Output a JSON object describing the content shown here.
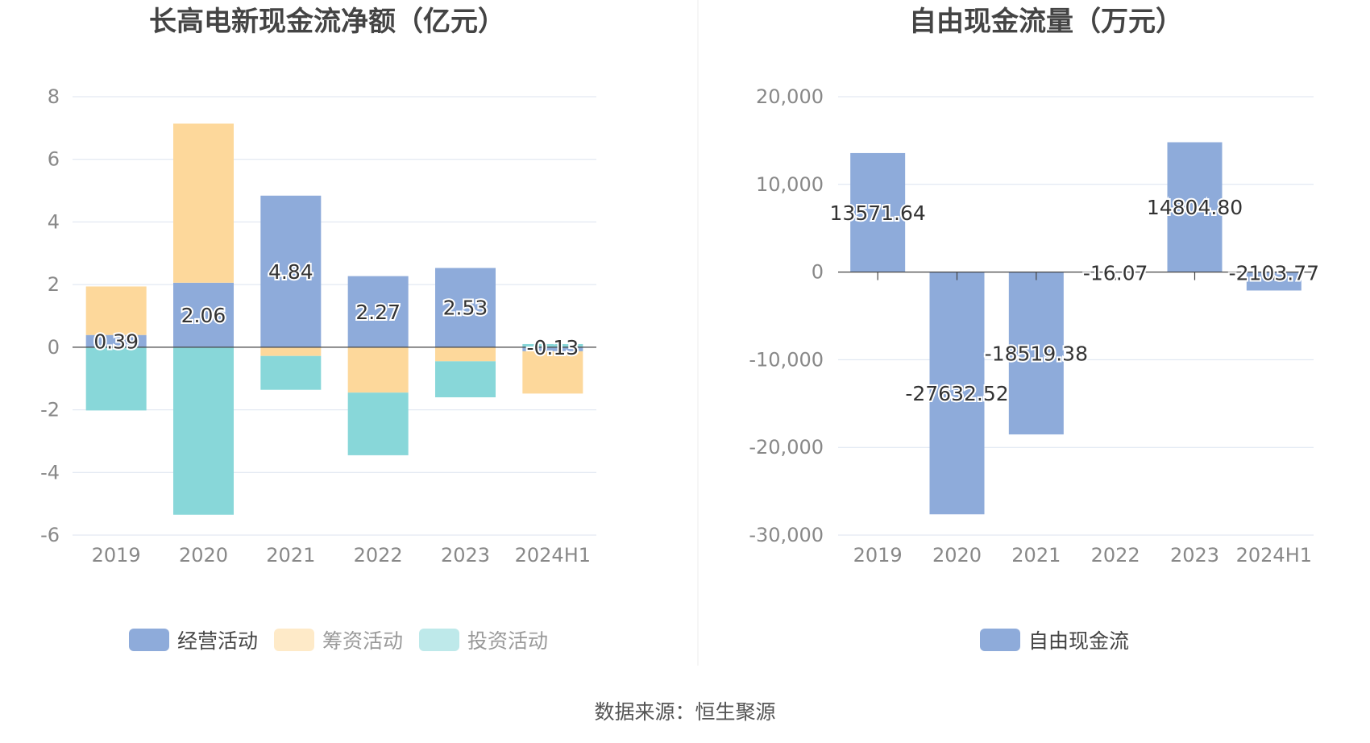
{
  "source": "数据来源：恒生聚源",
  "colors": {
    "operating": "#8eabda",
    "financing": "#fdd89b",
    "investing": "#88d7d9",
    "fcf": "#8eabda",
    "grid": "#dce3ef",
    "axis_text": "#888888",
    "title_text": "#444444",
    "label_text": "#333333"
  },
  "chart_data": [
    {
      "type": "bar",
      "stacked": true,
      "title": "长高电新现金流净额（亿元）",
      "categories": [
        "2019",
        "2020",
        "2021",
        "2022",
        "2023",
        "2024H1"
      ],
      "ylim": [
        -6,
        8
      ],
      "yticks": [
        8,
        6,
        4,
        2,
        0,
        -2,
        -4,
        -6
      ],
      "grid": true,
      "legend_position": "bottom",
      "series": [
        {
          "name": "经营活动",
          "color_key": "operating",
          "values": [
            0.39,
            2.06,
            4.84,
            2.27,
            2.53,
            -0.13
          ],
          "labels": [
            "0.39",
            "2.06",
            "4.84",
            "2.27",
            "2.53",
            "-0.13"
          ]
        },
        {
          "name": "筹资活动",
          "color_key": "financing",
          "values": [
            1.55,
            5.08,
            -0.28,
            -1.45,
            -0.45,
            -1.35
          ]
        },
        {
          "name": "投资活动",
          "color_key": "investing",
          "values": [
            -2.02,
            -5.35,
            -1.08,
            -2.0,
            -1.15,
            0.1
          ]
        }
      ]
    },
    {
      "type": "bar",
      "title": "自由现金流量（万元）",
      "categories": [
        "2019",
        "2020",
        "2021",
        "2022",
        "2023",
        "2024H1"
      ],
      "ylim": [
        -30000,
        20000
      ],
      "yticks": [
        20000,
        10000,
        0,
        -10000,
        -20000,
        -30000
      ],
      "ytick_labels": [
        "20,000",
        "10,000",
        "0",
        "-10,000",
        "-20,000",
        "-30,000"
      ],
      "grid": true,
      "legend_position": "bottom",
      "series": [
        {
          "name": "自由现金流",
          "color_key": "fcf",
          "values": [
            13571.64,
            -27632.52,
            -18519.38,
            -16.07,
            14804.8,
            -2103.77
          ],
          "labels": [
            "13571.64",
            "-27632.52",
            "-18519.38",
            "-16.07",
            "14804.80",
            "-2103.77"
          ]
        }
      ]
    }
  ]
}
